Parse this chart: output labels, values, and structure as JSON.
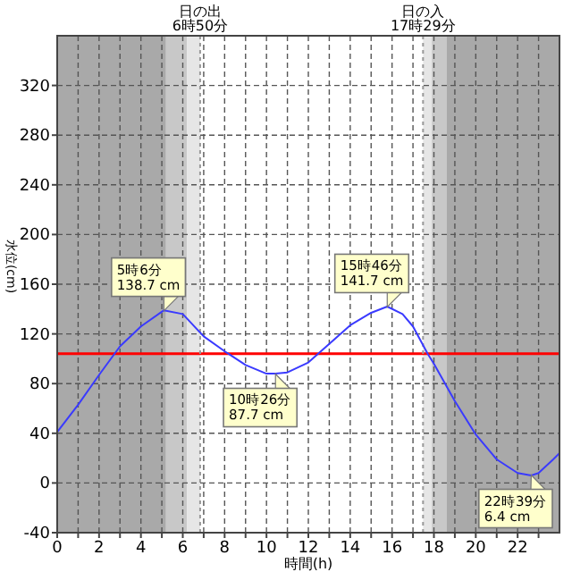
{
  "chart_data": {
    "type": "line",
    "xlabel": "時間(h)",
    "ylabel": "水位(cm)",
    "x": [
      0,
      1,
      2,
      3,
      4,
      5.1,
      6,
      7,
      8,
      9,
      10,
      10.43,
      11,
      12,
      13,
      14,
      15,
      15.77,
      16.5,
      17,
      17.7,
      18,
      19,
      20,
      21,
      22,
      22.65,
      23,
      23.7,
      24
    ],
    "series": [
      {
        "color": "#3a3aff",
        "values": [
          41,
          63,
          87,
          110,
          126,
          139,
          136,
          118,
          106,
          95,
          88,
          88,
          89,
          97,
          112,
          127,
          137,
          142,
          136,
          126,
          104,
          96,
          66,
          39,
          19,
          8,
          6,
          8,
          19,
          24
        ]
      }
    ],
    "xlim": [
      0,
      24
    ],
    "ylim": [
      -40,
      360
    ],
    "xticks": [
      0,
      {
        "value": 1,
        "label": null
      },
      2,
      {
        "value": 3,
        "label": null
      },
      4,
      {
        "value": 5,
        "label": null
      },
      6,
      {
        "value": 7,
        "label": null
      },
      8,
      {
        "value": 9,
        "label": null
      },
      10,
      {
        "value": 11,
        "label": null
      },
      12,
      {
        "value": 13,
        "label": null
      },
      14,
      {
        "value": 15,
        "label": null
      },
      16,
      {
        "value": 17,
        "label": null
      },
      18,
      {
        "value": 19,
        "label": null
      },
      20,
      {
        "value": 21,
        "label": null
      },
      22,
      {
        "value": 23,
        "label": null
      }
    ],
    "yticks": [
      -40,
      0,
      40,
      80,
      120,
      160,
      200,
      240,
      280,
      320
    ],
    "grid": true,
    "marker": "none",
    "line_style": "solid",
    "ref_lines": [
      {
        "axis": "y",
        "value": 104,
        "color": "#ff0000"
      },
      {
        "axis": "x",
        "value": 6.83,
        "label": "日の出\n6時50分",
        "color": "#999999",
        "line_style": "dotted"
      },
      {
        "axis": "x",
        "value": 17.48,
        "label": "日の入\n17時29分",
        "color": "#999999",
        "line_style": "dotted"
      }
    ],
    "bands": [
      {
        "axis": "x",
        "from": 0,
        "to": 5.2,
        "color": "#a9a9a9"
      },
      {
        "axis": "x",
        "from": 5.2,
        "to": 6.2,
        "color": "#c8c8c8"
      },
      {
        "axis": "x",
        "from": 6.2,
        "to": 6.83,
        "color": "#e6e6e6"
      },
      {
        "axis": "x",
        "from": 17.48,
        "to": 17.9,
        "color": "#e6e6e6"
      },
      {
        "axis": "x",
        "from": 17.9,
        "to": 18.6,
        "color": "#c8c8c8"
      },
      {
        "axis": "x",
        "from": 18.6,
        "to": 24,
        "color": "#a9a9a9"
      }
    ],
    "annotations": [
      {
        "text": "5時6分\n138.7 cm",
        "x": 5.1,
        "y": 138.7
      },
      {
        "text": "10時26分\n87.7 cm",
        "x": 10.43,
        "y": 87.7
      },
      {
        "text": "15時46分\n141.7 cm",
        "x": 15.77,
        "y": 141.7
      },
      {
        "text": "22時39分\n6.4 cm",
        "x": 22.65,
        "y": 6.4
      }
    ]
  }
}
